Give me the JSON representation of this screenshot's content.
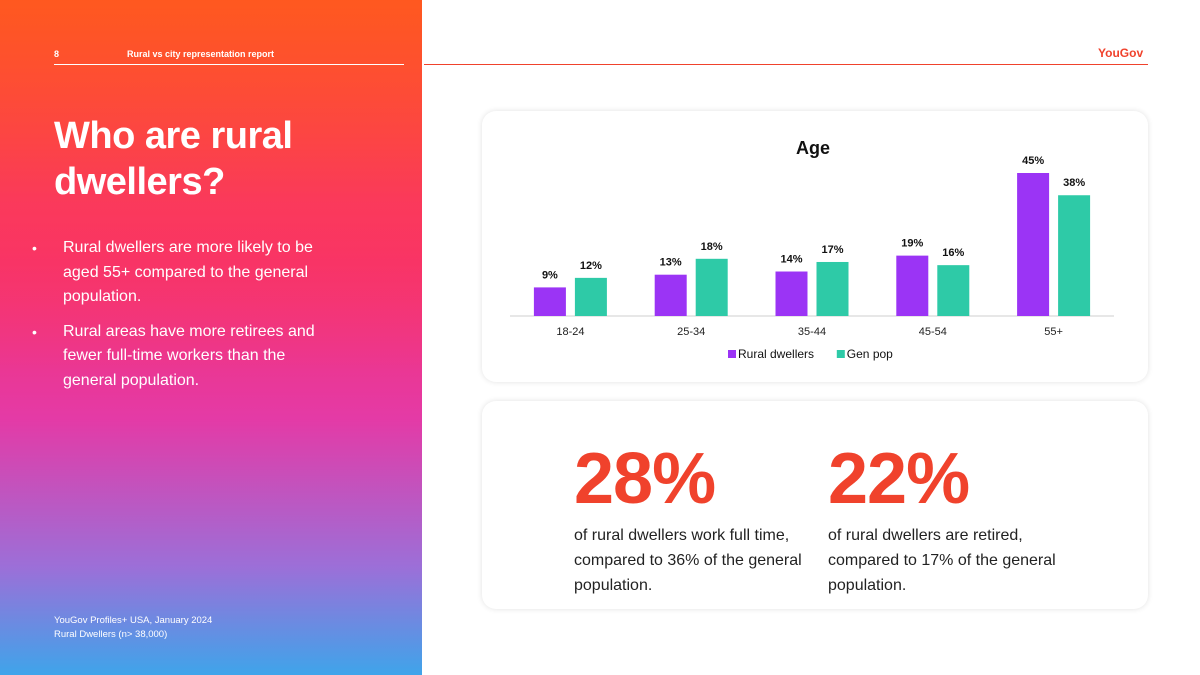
{
  "header": {
    "page_number": "8",
    "report_title": "Rural vs city representation report",
    "brand": "YouGov"
  },
  "left": {
    "headline": "Who are rural dwellers?",
    "bullets": [
      "Rural dwellers are more likely to be aged 55+ compared to the general population.",
      "Rural areas have more retirees and fewer full-time workers than the general population."
    ],
    "bullet_symbol": "•",
    "source_line1": "YouGov Profiles+ USA, January 2024",
    "source_line2": "Rural Dwellers (n> 38,000)"
  },
  "chart_data": {
    "type": "bar",
    "title": "Age",
    "categories": [
      "18-24",
      "25-34",
      "35-44",
      "45-54",
      "55+"
    ],
    "series": [
      {
        "name": "Rural dwellers",
        "values": [
          9,
          13,
          14,
          19,
          45
        ],
        "color": "#9b34f5"
      },
      {
        "name": "Gen pop",
        "values": [
          12,
          18,
          17,
          16,
          38
        ],
        "color": "#2ecaa7"
      }
    ],
    "value_suffix": "%",
    "ylim": [
      0,
      45
    ],
    "grid": false,
    "legend": "bottom"
  },
  "stats": [
    {
      "value": "28%",
      "text": "of rural dwellers work full time, compared to 36% of the general population."
    },
    {
      "value": "22%",
      "text": "of rural dwellers are retired, compared to 17% of the general population."
    }
  ],
  "colors": {
    "accent": "#f0422c",
    "rural": "#9b34f5",
    "genpop": "#2ecaa7"
  }
}
